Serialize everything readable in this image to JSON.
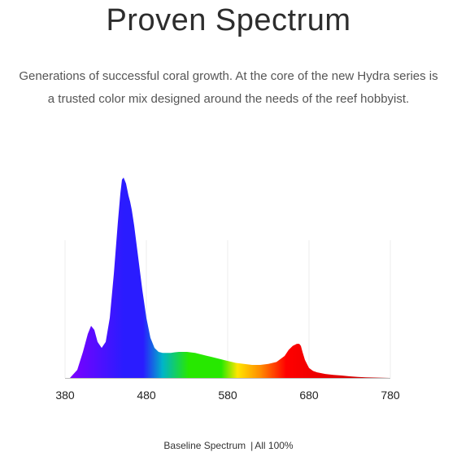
{
  "header": {
    "title": "Proven Spectrum",
    "subtitle_line1": "Generations of successful coral growth. At the core of the new Hydra series is",
    "subtitle_line2": "a trusted color mix designed around the needs of the reef hobbyist."
  },
  "caption": {
    "name": "Baseline Spectrum",
    "separator": "|",
    "setting": "All 100%"
  },
  "chart_data": {
    "type": "area",
    "x_ticks": [
      380,
      480,
      580,
      680,
      780
    ],
    "xlim": [
      380,
      780
    ],
    "ylim": [
      0,
      1
    ],
    "grid": true,
    "series": [
      {
        "values_x": [
          386,
          395,
          402,
          408,
          412,
          416,
          420,
          425,
          430,
          435,
          440,
          445,
          448,
          450,
          452,
          455,
          458,
          460,
          462,
          465,
          470,
          475,
          480,
          485,
          490,
          495,
          500,
          505,
          510,
          515,
          520,
          530,
          540,
          550,
          560,
          570,
          580,
          590,
          600,
          610,
          620,
          630,
          640,
          650,
          655,
          660,
          665,
          668,
          670,
          672,
          675,
          680,
          685,
          690,
          700,
          710,
          720,
          730,
          740,
          750,
          760,
          770,
          780
        ],
        "values_y": [
          0.0,
          0.04,
          0.13,
          0.22,
          0.26,
          0.24,
          0.18,
          0.15,
          0.18,
          0.3,
          0.52,
          0.78,
          0.92,
          0.99,
          1.0,
          0.97,
          0.91,
          0.88,
          0.84,
          0.76,
          0.6,
          0.44,
          0.3,
          0.2,
          0.15,
          0.13,
          0.125,
          0.125,
          0.125,
          0.128,
          0.13,
          0.13,
          0.125,
          0.115,
          0.105,
          0.095,
          0.085,
          0.075,
          0.07,
          0.065,
          0.065,
          0.07,
          0.08,
          0.11,
          0.14,
          0.16,
          0.17,
          0.17,
          0.16,
          0.13,
          0.09,
          0.05,
          0.035,
          0.028,
          0.02,
          0.015,
          0.012,
          0.008,
          0.005,
          0.003,
          0.002,
          0.001,
          0.0
        ]
      }
    ],
    "colors": {
      "violet": "#7a00ff",
      "blue": "#2a1cff",
      "cyan": "#00b4c8",
      "green": "#27e800",
      "yellow": "#ffe600",
      "orange": "#ff8c00",
      "red": "#ff0000",
      "deep_red": "#c00000",
      "grid": "#eeeeee",
      "baseline": "#bbbbbb"
    }
  }
}
